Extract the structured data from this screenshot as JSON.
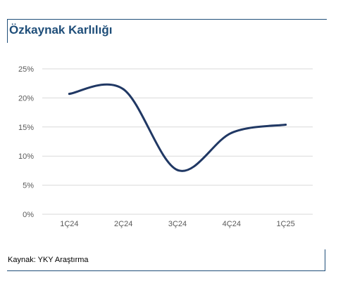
{
  "header": {
    "title": "Özkaynak Karlılığı"
  },
  "footer": {
    "source": "Kaynak: YKY Araştırma"
  },
  "colors": {
    "frame": "#1f4e79",
    "title": "#1f4e79",
    "line": "#203864",
    "grid": "#d9d9d9",
    "tick_text": "#595959"
  },
  "chart_data": {
    "type": "line",
    "title": "Özkaynak Karlılığı",
    "categories": [
      "1Ç24",
      "2Ç24",
      "3Ç24",
      "4Ç24",
      "1Ç25"
    ],
    "series": [
      {
        "values": [
          20.7,
          21.5,
          7.6,
          14.0,
          15.4
        ]
      }
    ],
    "yticks": [
      "0%",
      "5%",
      "10%",
      "15%",
      "20%",
      "25%"
    ],
    "ylim": [
      0,
      25
    ],
    "smooth": true,
    "grid": true,
    "legend": "none",
    "xlabel": "",
    "ylabel": ""
  }
}
